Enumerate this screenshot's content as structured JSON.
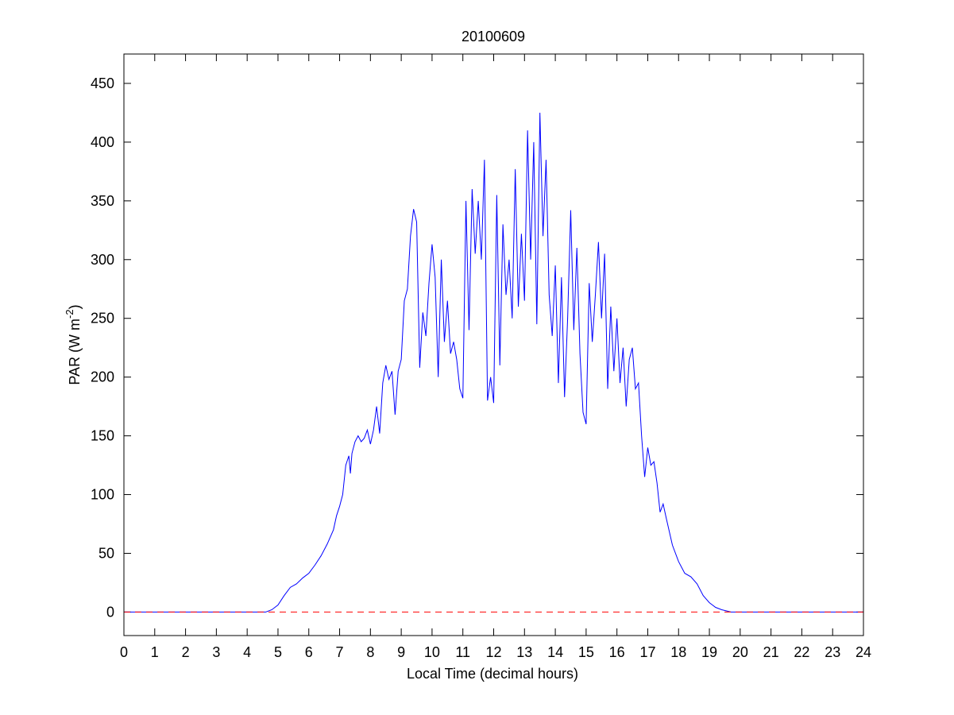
{
  "chart_data": {
    "type": "line",
    "title": "20100609",
    "xlabel": "Local Time (decimal hours)",
    "ylabel": {
      "text": "PAR (W m",
      "sup": "-2",
      "close": ")"
    },
    "x": [
      0,
      4.6,
      4.8,
      5.0,
      5.2,
      5.4,
      5.6,
      5.8,
      6.0,
      6.2,
      6.4,
      6.6,
      6.8,
      6.9,
      7.0,
      7.1,
      7.2,
      7.3,
      7.35,
      7.4,
      7.5,
      7.6,
      7.7,
      7.8,
      7.9,
      8.0,
      8.1,
      8.2,
      8.3,
      8.4,
      8.5,
      8.6,
      8.7,
      8.8,
      8.9,
      9.0,
      9.1,
      9.2,
      9.3,
      9.4,
      9.5,
      9.6,
      9.7,
      9.8,
      9.9,
      10.0,
      10.1,
      10.2,
      10.3,
      10.4,
      10.5,
      10.6,
      10.7,
      10.8,
      10.9,
      11.0,
      11.1,
      11.2,
      11.3,
      11.4,
      11.5,
      11.6,
      11.7,
      11.8,
      11.9,
      12.0,
      12.1,
      12.2,
      12.3,
      12.4,
      12.5,
      12.6,
      12.7,
      12.8,
      12.9,
      13.0,
      13.1,
      13.2,
      13.3,
      13.4,
      13.5,
      13.6,
      13.7,
      13.8,
      13.9,
      14.0,
      14.1,
      14.2,
      14.3,
      14.4,
      14.5,
      14.6,
      14.7,
      14.8,
      14.9,
      15.0,
      15.1,
      15.2,
      15.3,
      15.4,
      15.5,
      15.6,
      15.7,
      15.8,
      15.9,
      16.0,
      16.1,
      16.2,
      16.3,
      16.4,
      16.5,
      16.6,
      16.7,
      16.8,
      16.9,
      17.0,
      17.1,
      17.2,
      17.3,
      17.4,
      17.5,
      17.6,
      17.8,
      18.0,
      18.2,
      18.4,
      18.6,
      18.8,
      19.0,
      19.2,
      19.4,
      19.7,
      24
    ],
    "series": [
      {
        "color": "#0000ff",
        "values": [
          0,
          0,
          2,
          6,
          14,
          21,
          24,
          29,
          33,
          40,
          48,
          58,
          70,
          82,
          90,
          100,
          125,
          133,
          118,
          135,
          145,
          150,
          145,
          148,
          155,
          143,
          155,
          175,
          152,
          195,
          210,
          198,
          205,
          168,
          205,
          215,
          265,
          275,
          320,
          343,
          332,
          208,
          255,
          235,
          280,
          313,
          285,
          200,
          300,
          230,
          265,
          220,
          230,
          215,
          190,
          182,
          350,
          240,
          360,
          305,
          350,
          300,
          385,
          180,
          200,
          178,
          355,
          210,
          330,
          270,
          300,
          250,
          377,
          260,
          322,
          265,
          410,
          300,
          400,
          245,
          425,
          320,
          385,
          270,
          235,
          295,
          195,
          285,
          183,
          250,
          342,
          240,
          310,
          220,
          170,
          160,
          280,
          230,
          270,
          315,
          250,
          305,
          190,
          260,
          205,
          250,
          195,
          225,
          175,
          215,
          225,
          190,
          195,
          150,
          115,
          140,
          125,
          128,
          110,
          85,
          92,
          80,
          57,
          43,
          33,
          30,
          24,
          14,
          8,
          4,
          2,
          0,
          0
        ]
      }
    ],
    "reference_line": {
      "value": 0,
      "color": "#ff0000",
      "dashed": true
    },
    "xlim": [
      0,
      24
    ],
    "xticks": [
      0,
      1,
      2,
      3,
      4,
      5,
      6,
      7,
      8,
      9,
      10,
      11,
      12,
      13,
      14,
      15,
      16,
      17,
      18,
      19,
      20,
      21,
      22,
      23,
      24
    ],
    "ylim": [
      -20,
      475
    ],
    "yticks": [
      0,
      50,
      100,
      150,
      200,
      250,
      300,
      350,
      400,
      450
    ]
  }
}
